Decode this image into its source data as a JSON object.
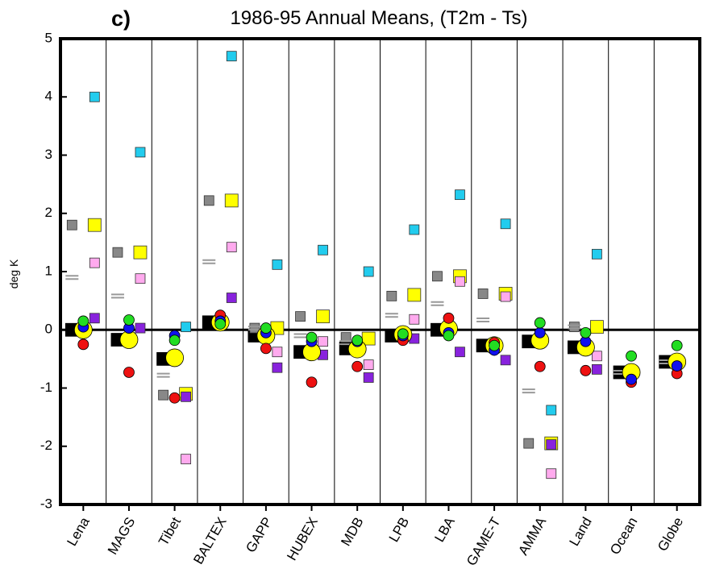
{
  "chart_data": {
    "type": "scatter",
    "panel_label": "c)",
    "title": "1986-95 Annual Means, (T2m - Ts)",
    "y_label": "deg K",
    "categories": [
      "Lena",
      "MAGS",
      "Tibet",
      "BALTEX",
      "GAPP",
      "HUBEX",
      "MDB",
      "LPB",
      "LBA",
      "GAME-T",
      "AMMA",
      "Land",
      "Ocean",
      "Globe"
    ],
    "ylim": [
      -3,
      5
    ],
    "yticks": [
      -3,
      -2,
      -1,
      0,
      1,
      2,
      3,
      4,
      5
    ],
    "zero_line": true,
    "category_dividers": true,
    "series": [
      {
        "color": "#000000",
        "marker": "square",
        "size": "large",
        "slot": "left",
        "values": [
          0.0,
          -0.17,
          -0.5,
          0.13,
          -0.1,
          -0.38,
          -0.32,
          -0.1,
          0.0,
          -0.27,
          -0.2,
          -0.3,
          -0.73,
          -0.55
        ]
      },
      {
        "color": "#888888",
        "marker": "square",
        "size": "small",
        "slot": "left",
        "values": [
          1.8,
          1.33,
          -1.12,
          2.22,
          0.03,
          0.23,
          -0.13,
          0.58,
          0.92,
          0.62,
          -1.95,
          0.05,
          null,
          null
        ]
      },
      {
        "color": "#999999",
        "marker": "dash",
        "size": "small",
        "slot": "left",
        "values": [
          0.9,
          0.58,
          -0.78,
          1.17,
          0.03,
          -0.1,
          -0.22,
          0.25,
          0.45,
          0.17,
          -1.05,
          0.05,
          -0.73,
          -0.55
        ]
      },
      {
        "color": "#ffff00",
        "marker": "square",
        "size": "large",
        "slot": "right",
        "values": [
          1.8,
          1.33,
          -1.1,
          2.22,
          0.03,
          0.23,
          -0.15,
          0.6,
          0.92,
          0.62,
          -1.95,
          0.05,
          null,
          null
        ]
      },
      {
        "color": "#22ccee",
        "marker": "square",
        "size": "small",
        "slot": "right",
        "values": [
          4.0,
          3.05,
          0.05,
          4.7,
          1.12,
          1.37,
          1.0,
          1.72,
          2.32,
          1.82,
          -1.38,
          1.3,
          null,
          null
        ]
      },
      {
        "color": "#ffaaee",
        "marker": "square",
        "size": "small",
        "slot": "right",
        "values": [
          1.15,
          0.88,
          -2.22,
          1.42,
          -0.38,
          -0.2,
          -0.6,
          0.18,
          0.83,
          0.57,
          -2.47,
          -0.45,
          null,
          null
        ]
      },
      {
        "color": "#8822dd",
        "marker": "square",
        "size": "small",
        "slot": "right",
        "values": [
          0.2,
          0.03,
          -1.15,
          0.55,
          -0.65,
          -0.43,
          -0.82,
          -0.15,
          -0.38,
          -0.52,
          -1.97,
          -0.68,
          null,
          null
        ]
      },
      {
        "color": "#ffff00",
        "marker": "circle",
        "size": "large",
        "slot": "center",
        "values": [
          0.0,
          -0.17,
          -0.48,
          0.13,
          -0.1,
          -0.38,
          -0.33,
          -0.08,
          0.02,
          -0.27,
          -0.18,
          -0.3,
          -0.73,
          -0.55
        ]
      },
      {
        "color": "#ee1111",
        "marker": "circle",
        "size": "small",
        "slot": "center",
        "values": [
          -0.25,
          -0.73,
          -1.17,
          0.25,
          -0.32,
          -0.9,
          -0.63,
          -0.18,
          0.2,
          -0.22,
          -0.63,
          -0.7,
          -0.9,
          -0.75
        ]
      },
      {
        "color": "#1111ee",
        "marker": "circle",
        "size": "small",
        "slot": "center",
        "values": [
          0.05,
          0.03,
          -0.1,
          0.15,
          -0.05,
          -0.2,
          -0.2,
          -0.1,
          -0.05,
          -0.35,
          -0.05,
          -0.2,
          -0.85,
          -0.62
        ]
      },
      {
        "color": "#22dd22",
        "marker": "circle",
        "size": "small",
        "slot": "center",
        "values": [
          0.15,
          0.17,
          -0.18,
          0.1,
          0.03,
          -0.13,
          -0.18,
          -0.07,
          -0.1,
          -0.27,
          0.12,
          -0.05,
          -0.45,
          -0.27
        ]
      }
    ]
  }
}
